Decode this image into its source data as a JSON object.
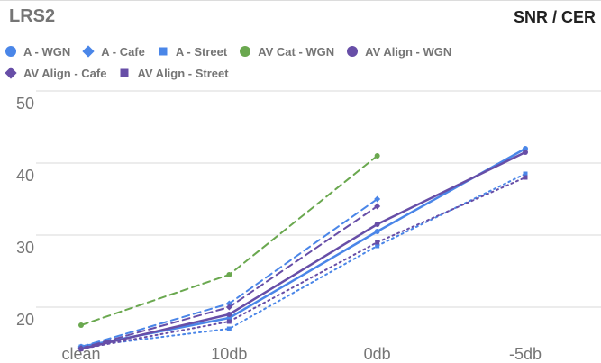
{
  "chart_data": {
    "type": "line",
    "title": "LRS2",
    "subtitle": "SNR / CER",
    "categories": [
      "clean",
      "10db",
      "0db",
      "-5db"
    ],
    "yticks": [
      20,
      30,
      40,
      50
    ],
    "ylim": [
      15,
      50
    ],
    "grid": true,
    "legend_position": "top",
    "series": [
      {
        "name": "A - WGN",
        "marker": "circle",
        "dash": "solid",
        "color": "#4a86e8",
        "values": [
          14.5,
          18.5,
          30.5,
          42.0
        ]
      },
      {
        "name": "A - Cafe",
        "marker": "diamond",
        "dash": "dashed",
        "color": "#4a86e8",
        "values": [
          14.5,
          20.5,
          35.0,
          null
        ]
      },
      {
        "name": "A - Street",
        "marker": "square",
        "dash": "dotted",
        "color": "#4a86e8",
        "values": [
          14.5,
          17.0,
          28.5,
          38.5
        ]
      },
      {
        "name": "AV Cat - WGN",
        "marker": "circle",
        "dash": "dashed",
        "color": "#6aa84f",
        "values": [
          17.5,
          24.5,
          41.0,
          null
        ]
      },
      {
        "name": "AV Align - WGN",
        "marker": "circle",
        "dash": "solid",
        "color": "#674ea7",
        "values": [
          14.2,
          19.0,
          31.5,
          41.5
        ]
      },
      {
        "name": "AV Align - Cafe",
        "marker": "diamond",
        "dash": "dashed",
        "color": "#674ea7",
        "values": [
          14.3,
          20.0,
          34.0,
          null
        ]
      },
      {
        "name": "AV Align - Street",
        "marker": "square",
        "dash": "dotted",
        "color": "#674ea7",
        "values": [
          14.2,
          18.0,
          29.0,
          38.0
        ]
      }
    ]
  }
}
